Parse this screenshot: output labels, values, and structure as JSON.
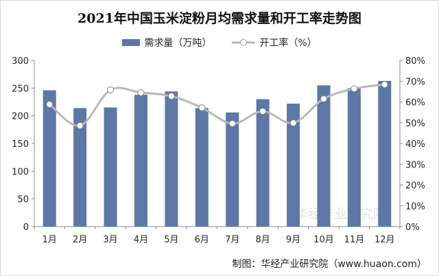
{
  "title": "2021年中国玉米淀粉月均需求量和开工率走势图",
  "source": "制图：华经产业研究院（www.huaon.com）",
  "watermark": "华经产业研究院",
  "colors": {
    "bar": "#5d77a6",
    "line": "#b8b8b8",
    "axis": "#888888"
  },
  "chart_data": {
    "type": "bar+line",
    "title": "2021年中国玉米淀粉月均需求量和开工率走势图",
    "categories": [
      "1月",
      "2月",
      "3月",
      "4月",
      "5月",
      "6月",
      "7月",
      "8月",
      "9月",
      "10月",
      "11月",
      "12月"
    ],
    "series": [
      {
        "name": "需求量（万吨）",
        "type": "bar",
        "axis": "left",
        "values": [
          246,
          214,
          215,
          238,
          244,
          214,
          206,
          230,
          222,
          255,
          250,
          263
        ]
      },
      {
        "name": "开工率（%）",
        "type": "line",
        "axis": "right",
        "values": [
          58.8,
          48.6,
          65.8,
          64.5,
          62.8,
          57.2,
          49.6,
          55.5,
          49.9,
          61.5,
          66.4,
          68.4
        ]
      }
    ],
    "y_left": {
      "lim": [
        0,
        300
      ],
      "ticks": [
        "0",
        "50",
        "100",
        "150",
        "200",
        "250",
        "300"
      ]
    },
    "y_right": {
      "lim": [
        0,
        80
      ],
      "ticks": [
        "0%",
        "10%",
        "20%",
        "30%",
        "40%",
        "50%",
        "60%",
        "70%",
        "80%"
      ]
    },
    "grid": false,
    "legend_position": "top"
  }
}
